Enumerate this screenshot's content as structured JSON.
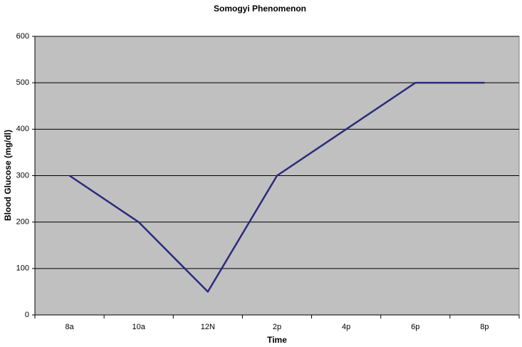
{
  "chart_data": {
    "type": "line",
    "title": "Somogyi Phenomenon",
    "x_label": "Time",
    "y_label": "Blood Glucose (mg/dl)",
    "categories": [
      "8a",
      "10a",
      "12N",
      "2p",
      "4p",
      "6p",
      "8p"
    ],
    "values": [
      300,
      200,
      50,
      300,
      400,
      500,
      500
    ],
    "color": "#2b2b7f",
    "ylim": [
      0,
      600
    ],
    "yticks": [
      0,
      100,
      200,
      300,
      400,
      500,
      600
    ],
    "grid": true
  }
}
